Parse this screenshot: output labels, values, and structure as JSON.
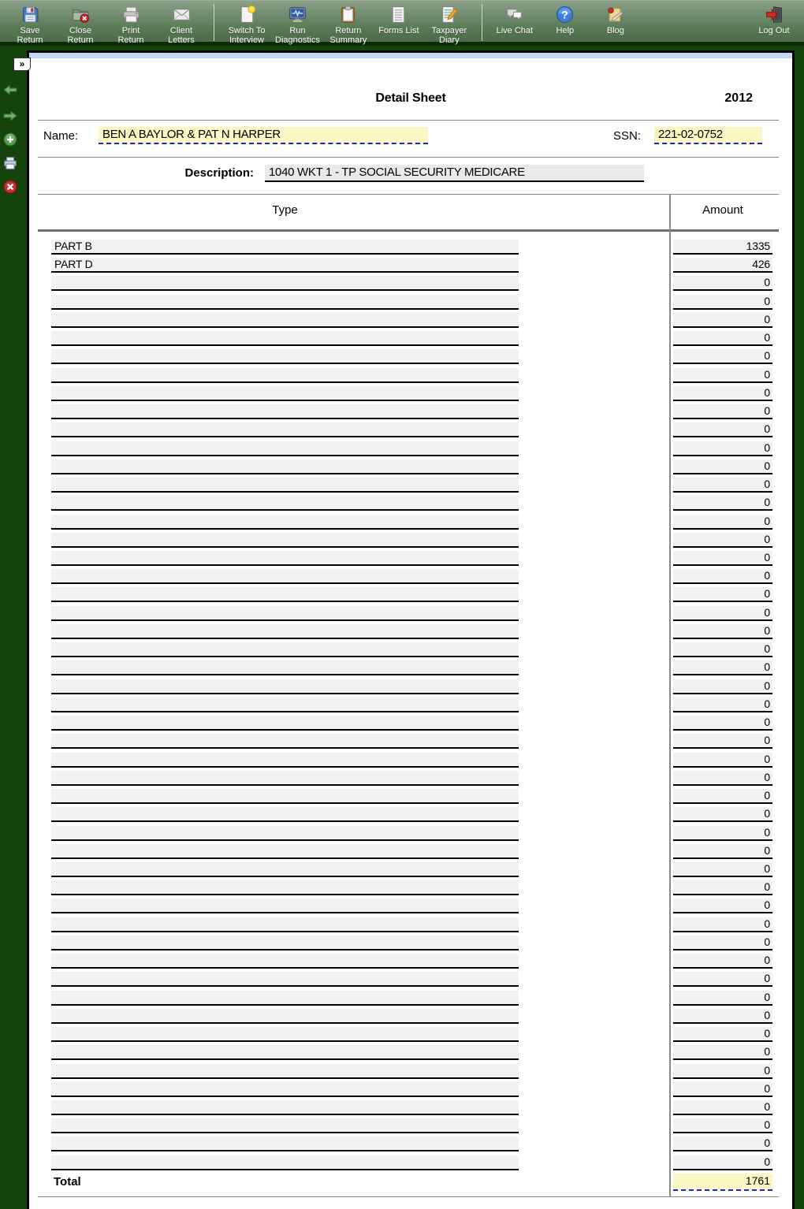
{
  "toolbar": {
    "buttons": [
      {
        "lines": [
          "Save",
          "Return"
        ],
        "icon": "save"
      },
      {
        "lines": [
          "Close",
          "Return"
        ],
        "icon": "close-return"
      },
      {
        "lines": [
          "Print",
          "Return"
        ],
        "icon": "print"
      },
      {
        "lines": [
          "Client",
          "Letters"
        ],
        "icon": "client-letters"
      },
      {
        "lines": [
          "Switch To",
          "Interview"
        ],
        "icon": "switch-interview"
      },
      {
        "lines": [
          "Run",
          "Diagnostics"
        ],
        "icon": "diagnostics"
      },
      {
        "lines": [
          "Return",
          "Summary"
        ],
        "icon": "summary"
      },
      {
        "lines": [
          "Forms List"
        ],
        "icon": "forms-list"
      },
      {
        "lines": [
          "Taxpayer",
          "Diary"
        ],
        "icon": "diary"
      },
      {
        "lines": [
          "Live Chat"
        ],
        "icon": "live-chat"
      },
      {
        "lines": [
          "Help"
        ],
        "icon": "help"
      },
      {
        "lines": [
          "Blog"
        ],
        "icon": "blog"
      }
    ],
    "logout": {
      "label": "Log Out",
      "icon": "logout"
    }
  },
  "sidebar": {
    "expand_label": "»",
    "icons": [
      "back-arrow",
      "forward-arrow",
      "add",
      "print",
      "close"
    ]
  },
  "form": {
    "title": "Detail Sheet",
    "year": "2012",
    "name_label": "Name:",
    "name_value": "BEN A BAYLOR & PAT N HARPER",
    "ssn_label": "SSN:",
    "ssn_value": "221-02-0752",
    "description_label": "Description:",
    "description_value": "1040 WKT 1 - TP SOCIAL SECURITY MEDICARE",
    "type_header": "Type",
    "amount_header": "Amount",
    "rows": [
      {
        "type": "PART B",
        "amount": "1335"
      },
      {
        "type": "PART D",
        "amount": "426"
      },
      {
        "type": "",
        "amount": "0"
      },
      {
        "type": "",
        "amount": "0"
      },
      {
        "type": "",
        "amount": "0"
      },
      {
        "type": "",
        "amount": "0"
      },
      {
        "type": "",
        "amount": "0"
      },
      {
        "type": "",
        "amount": "0"
      },
      {
        "type": "",
        "amount": "0"
      },
      {
        "type": "",
        "amount": "0"
      },
      {
        "type": "",
        "amount": "0"
      },
      {
        "type": "",
        "amount": "0"
      },
      {
        "type": "",
        "amount": "0"
      },
      {
        "type": "",
        "amount": "0"
      },
      {
        "type": "",
        "amount": "0"
      },
      {
        "type": "",
        "amount": "0"
      },
      {
        "type": "",
        "amount": "0"
      },
      {
        "type": "",
        "amount": "0"
      },
      {
        "type": "",
        "amount": "0"
      },
      {
        "type": "",
        "amount": "0"
      },
      {
        "type": "",
        "amount": "0"
      },
      {
        "type": "",
        "amount": "0"
      },
      {
        "type": "",
        "amount": "0"
      },
      {
        "type": "",
        "amount": "0"
      },
      {
        "type": "",
        "amount": "0"
      },
      {
        "type": "",
        "amount": "0"
      },
      {
        "type": "",
        "amount": "0"
      },
      {
        "type": "",
        "amount": "0"
      },
      {
        "type": "",
        "amount": "0"
      },
      {
        "type": "",
        "amount": "0"
      },
      {
        "type": "",
        "amount": "0"
      },
      {
        "type": "",
        "amount": "0"
      },
      {
        "type": "",
        "amount": "0"
      },
      {
        "type": "",
        "amount": "0"
      },
      {
        "type": "",
        "amount": "0"
      },
      {
        "type": "",
        "amount": "0"
      },
      {
        "type": "",
        "amount": "0"
      },
      {
        "type": "",
        "amount": "0"
      },
      {
        "type": "",
        "amount": "0"
      },
      {
        "type": "",
        "amount": "0"
      },
      {
        "type": "",
        "amount": "0"
      },
      {
        "type": "",
        "amount": "0"
      },
      {
        "type": "",
        "amount": "0"
      },
      {
        "type": "",
        "amount": "0"
      },
      {
        "type": "",
        "amount": "0"
      },
      {
        "type": "",
        "amount": "0"
      },
      {
        "type": "",
        "amount": "0"
      },
      {
        "type": "",
        "amount": "0"
      },
      {
        "type": "",
        "amount": "0"
      },
      {
        "type": "",
        "amount": "0"
      },
      {
        "type": "",
        "amount": "0"
      }
    ],
    "total_label": "Total",
    "total_value": "1761"
  },
  "colors": {
    "highlight_yellow": "#FBF7C2",
    "field_gray": "#F2F2F2",
    "entry_underline_blue": "#2020CC",
    "background_green": "#14430B",
    "toolbar_green_top": "#8CA189",
    "toolbar_green_bottom": "#4B6C4B",
    "top_strip_blue": "#BFD9F5"
  }
}
